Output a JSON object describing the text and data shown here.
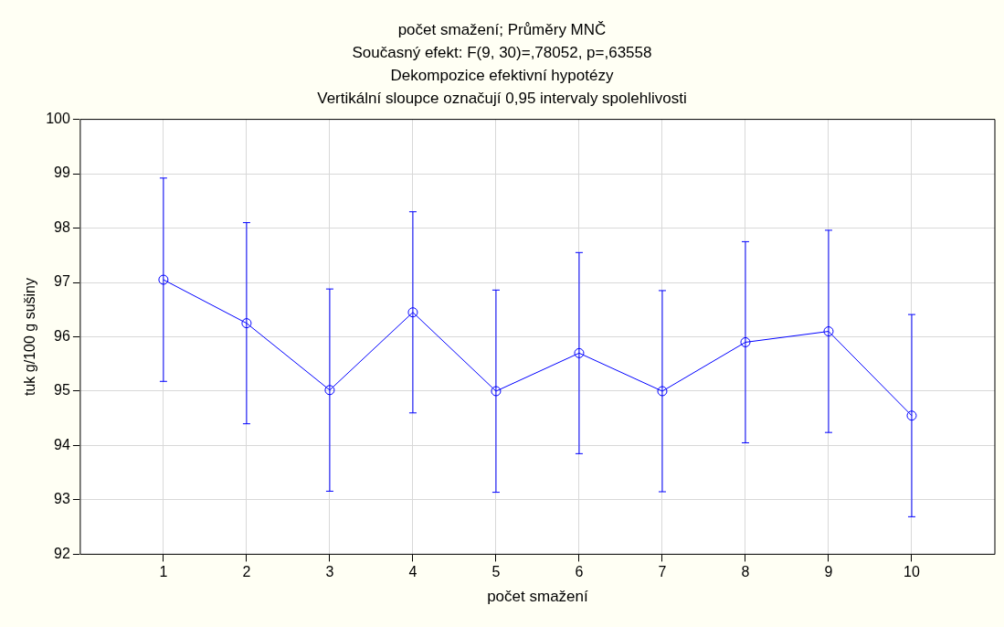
{
  "chart_data": {
    "type": "line",
    "title": "počet smažení; Průměry MNČ",
    "subtitle": "Současný efekt: F(9, 30)=,78052, p=,63558\nDekompozice efektivní hypotézy\nVertikální sloupce označují 0,95 intervaly spolehlivosti",
    "xlabel": "počet smažení",
    "ylabel": "tuk g/100 g sušiny",
    "x": [
      1,
      2,
      3,
      4,
      5,
      6,
      7,
      8,
      9,
      10
    ],
    "series": [
      {
        "color": "#0000ff",
        "values": [
          97.05,
          96.25,
          95.02,
          96.45,
          95.0,
          95.7,
          95.0,
          95.9,
          96.1,
          94.55
        ],
        "errors": [
          1.87,
          1.85,
          1.86,
          1.85,
          1.86,
          1.85,
          1.85,
          1.85,
          1.86,
          1.86
        ]
      }
    ],
    "xlim": [
      0,
      11
    ],
    "xticks": [
      1,
      2,
      3,
      4,
      5,
      6,
      7,
      8,
      9,
      10
    ],
    "ylim": [
      92,
      100
    ],
    "yticks": [
      92,
      93,
      94,
      95,
      96,
      97,
      98,
      99,
      100
    ],
    "grid": true,
    "legend": false,
    "marker": "circle",
    "line_style": "solid"
  }
}
